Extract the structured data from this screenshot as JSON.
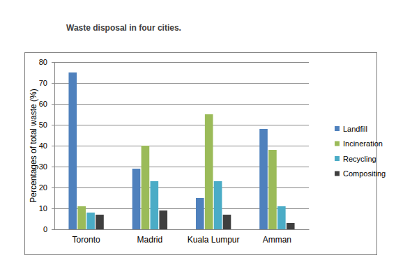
{
  "chart_data": {
    "type": "bar",
    "title": "Waste disposal in four cities.",
    "ylabel": "Percentages of total waste (%)",
    "categories": [
      "Toronto",
      "Madrid",
      "Kuala Lumpur",
      "Amman"
    ],
    "series": [
      {
        "name": "Landfill",
        "color": "#4f81bd",
        "values": [
          75,
          29,
          15,
          48
        ]
      },
      {
        "name": "Incineration",
        "color": "#9bbb59",
        "values": [
          11,
          40,
          55,
          38
        ]
      },
      {
        "name": "Recycling",
        "color": "#4bacc6",
        "values": [
          8,
          23,
          23,
          11
        ]
      },
      {
        "name": "Compositing",
        "color": "#3f3f3f",
        "values": [
          7,
          9,
          7,
          3
        ]
      }
    ],
    "ylim": [
      0,
      80
    ],
    "yticks": [
      0,
      10,
      20,
      30,
      40,
      50,
      60,
      70,
      80
    ],
    "grid": true,
    "legend": "right"
  }
}
